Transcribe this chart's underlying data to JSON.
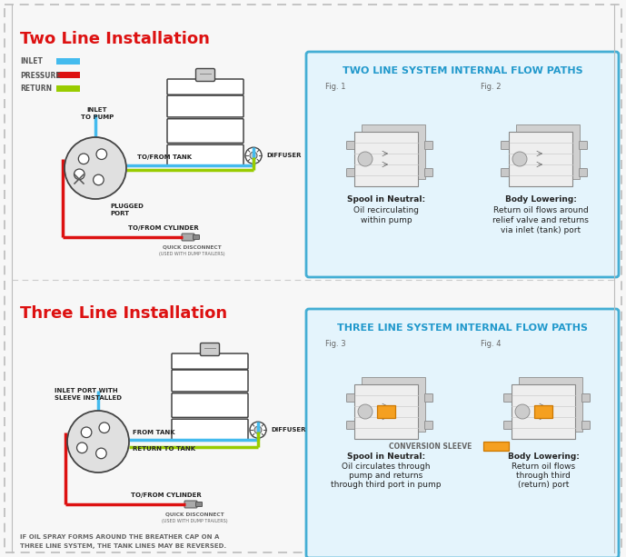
{
  "bg_color": "#f7f7f7",
  "border_color": "#bbbbbb",
  "title_two": "Two Line Installation",
  "title_three": "Three Line Installation",
  "title_color": "#dd1111",
  "panel_bg": "#e4f4fc",
  "panel_border": "#44aed4",
  "panel_title_two": "TWO LINE SYSTEM INTERNAL FLOW PATHS",
  "panel_title_three": "THREE LINE SYSTEM INTERNAL FLOW PATHS",
  "panel_title_color": "#2299cc",
  "legend_inlet_color": "#44bbee",
  "legend_pressure_color": "#dd1111",
  "legend_return_color": "#99cc00",
  "orange_sleeve_color": "#f5a020",
  "text_dark": "#222222",
  "text_mid": "#444444",
  "text_light": "#666666",
  "pump_fill": "#e0e0e0",
  "pump_outline": "#444444",
  "tank_fill": "#ffffff",
  "tank_outline": "#444444",
  "line_inlet": "#44bbee",
  "line_pressure": "#dd1111",
  "line_return": "#99cc00",
  "line_width": 2.5
}
